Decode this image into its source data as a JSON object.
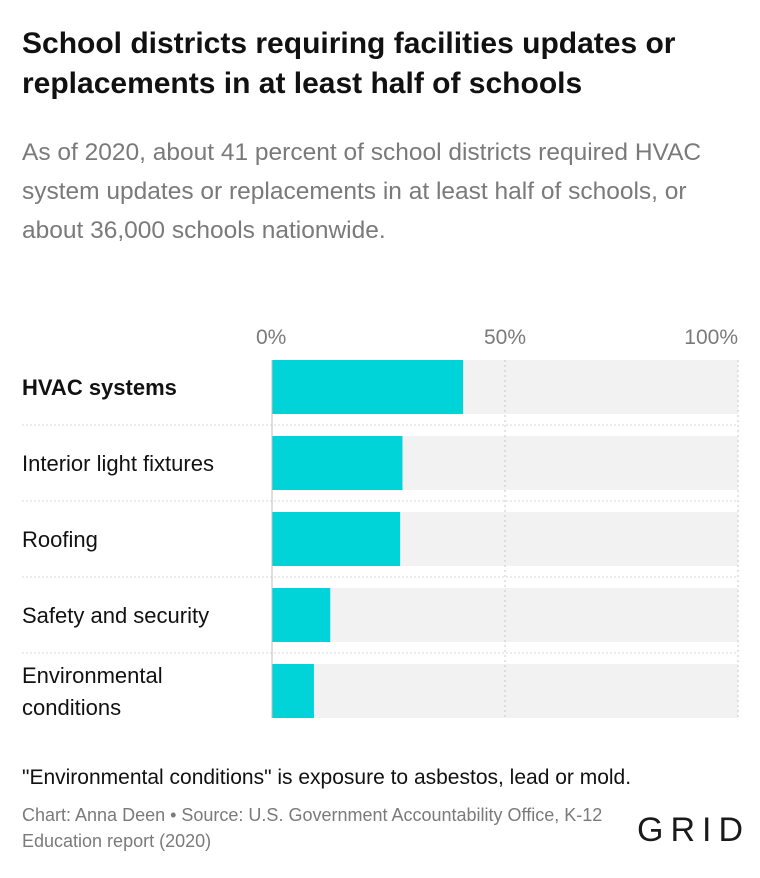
{
  "title": "School districts requiring facilities updates or replacements in at least half of schools",
  "subtitle": "As of 2020, about 41 percent of school districts required HVAC system updates or replacements in at least half of schools, or about 36,000 schools nationwide.",
  "note": "\"Environmental conditions\" is exposure to asbestos, lead or mold.",
  "credit": "Chart: Anna Deen • Source: U.S. Government Accountability Office, K-12 Education report (2020)",
  "logo": "GRID",
  "colors": {
    "bar": "#00d4d8",
    "track": "#f2f2f2",
    "grid": "#c8c8c8",
    "label": "#111111",
    "tick": "#7a7a7a"
  },
  "chart_data": {
    "type": "bar",
    "orientation": "horizontal",
    "categories": [
      "HVAC systems",
      "Interior light fixtures",
      "Roofing",
      "Safety and security",
      "Environmental conditions"
    ],
    "category_lines": [
      [
        "HVAC systems"
      ],
      [
        "Interior light fixtures"
      ],
      [
        "Roofing"
      ],
      [
        "Safety and security"
      ],
      [
        "Environmental",
        "conditions"
      ]
    ],
    "highlight": "HVAC systems",
    "values": [
      41,
      28,
      27.5,
      12.5,
      9
    ],
    "xlim": [
      0,
      100
    ],
    "ticks": [
      0,
      50,
      100
    ],
    "tick_labels": [
      "0%",
      "50%",
      "100%"
    ],
    "grid": true
  }
}
